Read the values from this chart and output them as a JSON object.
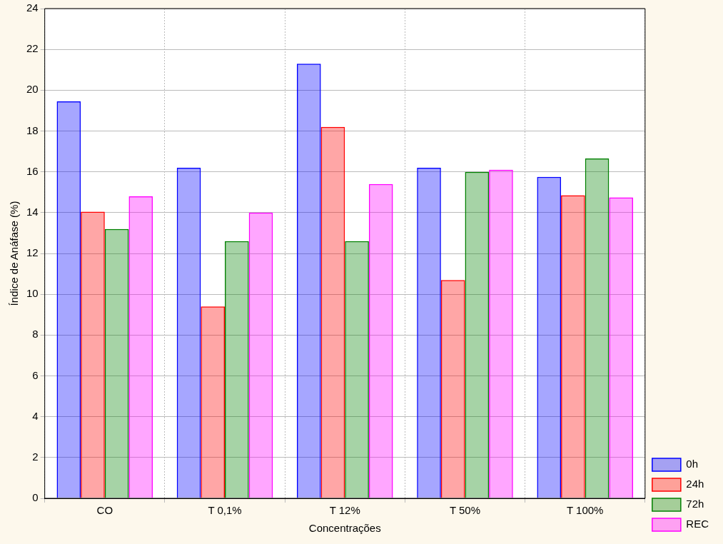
{
  "chart_data": {
    "type": "bar",
    "xlabel": "Concentrações",
    "ylabel": "Índice de Anáfase (%)",
    "categories": [
      "CO",
      "T 0,1%",
      "T 12%",
      "T 50%",
      "T 100%"
    ],
    "series": [
      {
        "name": "0h",
        "color": "#0000ff",
        "values": [
          19.45,
          16.2,
          21.3,
          16.2,
          15.75
        ]
      },
      {
        "name": "24h",
        "color": "#ff0000",
        "values": [
          14.05,
          9.4,
          18.2,
          10.7,
          14.85
        ]
      },
      {
        "name": "72h",
        "color": "#008000",
        "values": [
          13.2,
          12.6,
          12.6,
          16.0,
          16.65
        ]
      },
      {
        "name": "REC",
        "color": "#ff00ff",
        "values": [
          14.8,
          14.0,
          15.4,
          16.1,
          14.75
        ]
      }
    ],
    "ylim": [
      0,
      24
    ],
    "yticks": [
      0,
      2,
      4,
      6,
      8,
      10,
      12,
      14,
      16,
      18,
      20,
      22,
      24
    ],
    "grid": true,
    "legend": "bottom right"
  }
}
